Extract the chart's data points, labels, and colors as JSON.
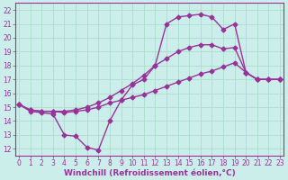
{
  "title": "",
  "xlabel": "Windchill (Refroidissement éolien,°C)",
  "ylabel": "",
  "bg_color": "#cceeea",
  "line_color": "#993399",
  "grid_color": "#aaddcc",
  "xlim": [
    -0.3,
    23.3
  ],
  "ylim": [
    11.5,
    22.5
  ],
  "xticks": [
    0,
    1,
    2,
    3,
    4,
    5,
    6,
    7,
    8,
    9,
    10,
    11,
    12,
    13,
    14,
    15,
    16,
    17,
    18,
    19,
    20,
    21,
    22,
    23
  ],
  "yticks": [
    12,
    13,
    14,
    15,
    16,
    17,
    18,
    19,
    20,
    21,
    22
  ],
  "line1_x": [
    0,
    1,
    2,
    3,
    4,
    5,
    6,
    7,
    8,
    9,
    10,
    11,
    12,
    13,
    14,
    15,
    16,
    17,
    18,
    19,
    20,
    21,
    22,
    23
  ],
  "line1_y": [
    15.2,
    14.7,
    14.6,
    14.5,
    13.0,
    12.9,
    12.1,
    11.9,
    14.0,
    15.5,
    16.6,
    17.0,
    18.0,
    21.0,
    21.5,
    21.6,
    21.7,
    21.5,
    20.6,
    21.0,
    17.5,
    17.0,
    17.0,
    17.0
  ],
  "line2_x": [
    0,
    1,
    2,
    3,
    4,
    5,
    6,
    7,
    8,
    9,
    10,
    11,
    12,
    13,
    14,
    15,
    16,
    17,
    18,
    19,
    20,
    21,
    22,
    23
  ],
  "line2_y": [
    15.2,
    14.8,
    14.7,
    14.7,
    14.6,
    14.7,
    14.8,
    15.0,
    15.3,
    15.5,
    15.7,
    15.9,
    16.2,
    16.5,
    16.8,
    17.1,
    17.4,
    17.6,
    17.9,
    18.2,
    17.5,
    17.0,
    17.0,
    17.0
  ],
  "line3_x": [
    0,
    1,
    2,
    3,
    4,
    5,
    6,
    7,
    8,
    9,
    10,
    11,
    12,
    13,
    14,
    15,
    16,
    17,
    18,
    19,
    20,
    21,
    22,
    23
  ],
  "line3_y": [
    15.2,
    14.8,
    14.7,
    14.7,
    14.7,
    14.8,
    15.0,
    15.3,
    15.7,
    16.2,
    16.7,
    17.3,
    18.0,
    18.5,
    19.0,
    19.3,
    19.5,
    19.5,
    19.2,
    19.3,
    17.5,
    17.0,
    17.0,
    17.0
  ],
  "marker": "D",
  "markersize": 2.5,
  "linewidth": 1.0,
  "tick_fontsize": 5.5,
  "xlabel_fontsize": 6.5
}
